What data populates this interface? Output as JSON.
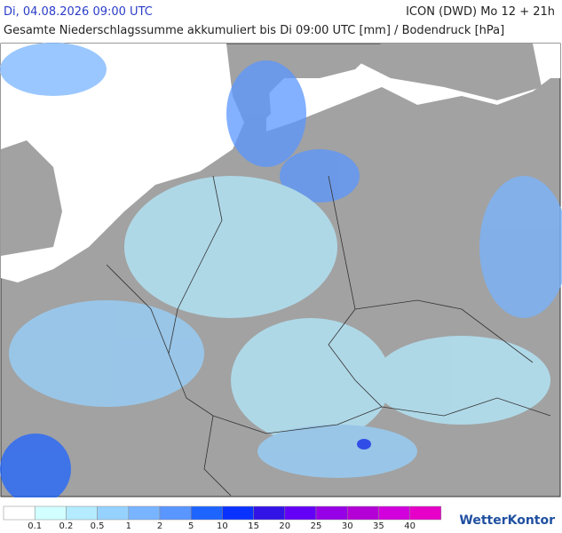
{
  "header": {
    "datetime": "Di, 04.08.2026 09:00 UTC",
    "model": "ICON (DWD) Mo 12 + 21h",
    "subtitle": "Gesamte Niederschlagssumme akkumuliert bis Di 09:00 UTC [mm] / Bodendruck [hPa]"
  },
  "legend": {
    "labels": [
      0.1,
      0.2,
      0.5,
      1,
      2,
      5,
      10,
      15,
      20,
      25,
      30,
      35,
      40
    ],
    "colors": [
      "#ffffff",
      "#d2ffff",
      "#b4ebff",
      "#96d2ff",
      "#78b4ff",
      "#5a96ff",
      "#1e64ff",
      "#0a32ff",
      "#3214e6",
      "#6400f5",
      "#9600e6",
      "#b400d7",
      "#d200dc",
      "#e600c8"
    ]
  },
  "brand": "WetterKontor"
}
